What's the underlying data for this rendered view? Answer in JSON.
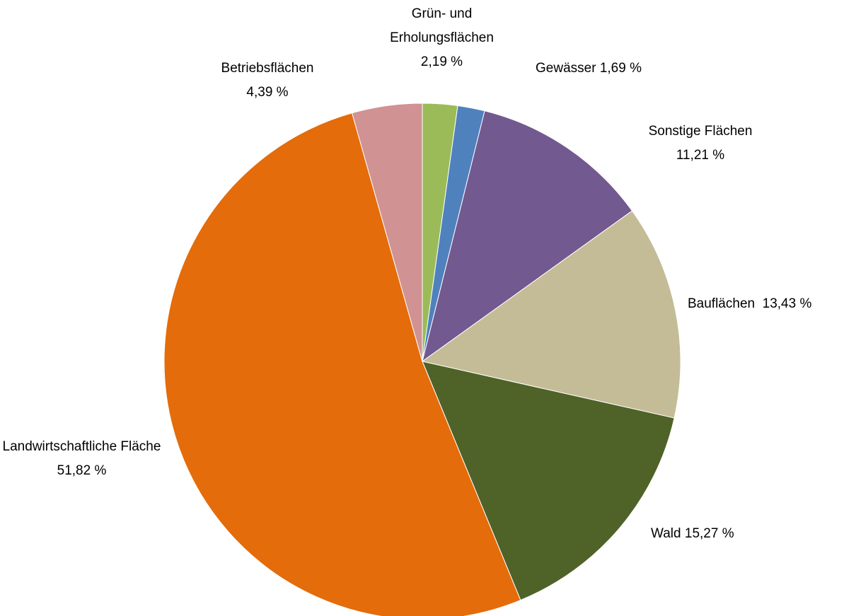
{
  "chart_data": {
    "type": "pie",
    "categories": [
      "Grün- und Erholungsflächen",
      "Gewässer",
      "Sonstige Flächen",
      "Bauflächen",
      "Wald",
      "Landwirtschaftliche Fläche",
      "Betriebsflächen"
    ],
    "values": [
      2.19,
      1.69,
      11.21,
      13.43,
      15.27,
      51.82,
      4.39
    ],
    "value_labels": [
      "2,19 %",
      "1,69 %",
      "11,21 %",
      "13,43 %",
      "15,27 %",
      "51,82 %",
      "4,39 %"
    ],
    "colors": [
      "#9bbb59",
      "#4f81bd",
      "#72598f",
      "#c4bc96",
      "#4f6228",
      "#e46c0a",
      "#d09292"
    ]
  }
}
